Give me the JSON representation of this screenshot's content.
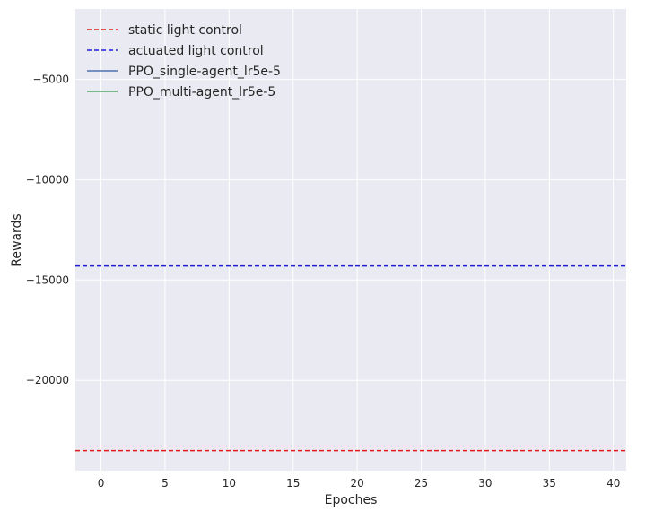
{
  "chart_data": {
    "type": "line",
    "title": "",
    "xlabel": "Epoches",
    "ylabel": "Rewards",
    "xlim": [
      -2,
      41
    ],
    "ylim": [
      -24500,
      -1500
    ],
    "xticks": [
      0,
      5,
      10,
      15,
      20,
      25,
      30,
      35,
      40
    ],
    "yticks": [
      -5000,
      -10000,
      -15000,
      -20000
    ],
    "ytick_labels": [
      "−5000",
      "−10000",
      "−15000",
      "−20000"
    ],
    "grid": true,
    "legend_position": "top-left",
    "series": [
      {
        "name": "static light control",
        "style": "dashed",
        "color": "#e31a1c",
        "y_constant": -23500
      },
      {
        "name": "actuated light control",
        "style": "dashed",
        "color": "#1f1fd6",
        "y_constant": -14300
      },
      {
        "name": "PPO_single-agent_lr5e-5",
        "style": "solid",
        "color": "#4c72b0",
        "values": []
      },
      {
        "name": "PPO_multi-agent_lr5e-5",
        "style": "solid",
        "color": "#55a868",
        "values": []
      }
    ],
    "colors": {
      "plot_background": "#eaeaf2",
      "grid": "#ffffff",
      "text": "#262626"
    }
  }
}
